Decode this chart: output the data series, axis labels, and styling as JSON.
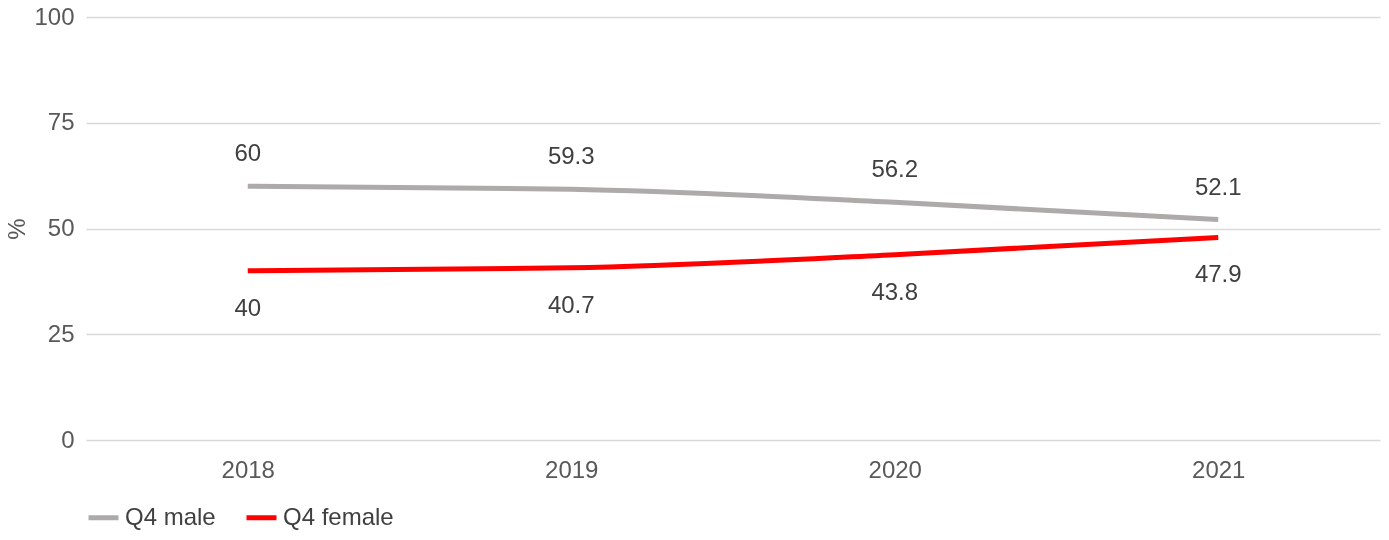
{
  "chart_data": {
    "type": "line",
    "ylabel": "%",
    "categories": [
      "2018",
      "2019",
      "2020",
      "2021"
    ],
    "series": [
      {
        "name": "Q4 male",
        "color": "#aeaaaa",
        "values": [
          60,
          59.3,
          56.2,
          52.1
        ]
      },
      {
        "name": "Q4 female",
        "color": "#ff0000",
        "values": [
          40,
          40.7,
          43.8,
          47.9
        ]
      }
    ],
    "ylim": [
      0,
      100
    ],
    "yticks": [
      0,
      25,
      50,
      75,
      100
    ],
    "grid": "y",
    "legend": "bottom",
    "data_labels": true,
    "marker": "none",
    "line_style": "solid"
  }
}
